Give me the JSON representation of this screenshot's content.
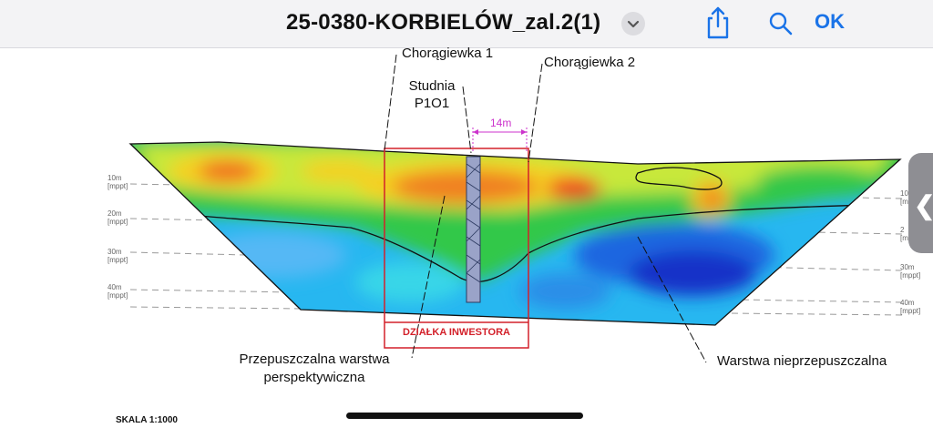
{
  "toolbar": {
    "title": "25-0380-KORBIELÓW_zal.2(1)",
    "ok_label": "OK",
    "icons": [
      "chevron-down-icon",
      "share-icon",
      "search-icon"
    ],
    "accent_color": "#1a73e8"
  },
  "drawing": {
    "annotations": {
      "flag1": "Chorągiewka 1",
      "flag2": "Chorągiewka 2",
      "well_line1": "Studnia",
      "well_line2": "P1O1",
      "distance": "14m",
      "plot_box": "DZIAŁKA INWESTORA",
      "permeable_line1": "Przepuszczalna warstwa",
      "permeable_line2": "perspektywiczna",
      "impermeable": "Warstwa nieprzepuszczalna"
    },
    "depths_left": [
      {
        "value": "10m",
        "unit": "[mppt]"
      },
      {
        "value": "20m",
        "unit": "[mppt]"
      },
      {
        "value": "30m",
        "unit": "[mppt]"
      },
      {
        "value": "40m",
        "unit": "[mppt]"
      }
    ],
    "depths_right": [
      {
        "value": "10",
        "unit": "[m"
      },
      {
        "value": "2",
        "unit": "[m"
      },
      {
        "value": "30m",
        "unit": "[mppt]"
      },
      {
        "value": "40m",
        "unit": "[mppt]"
      }
    ],
    "scale": "SKALA 1:1000",
    "colors": {
      "annotation": "#d3202a",
      "distance": "#cc33cc"
    }
  }
}
